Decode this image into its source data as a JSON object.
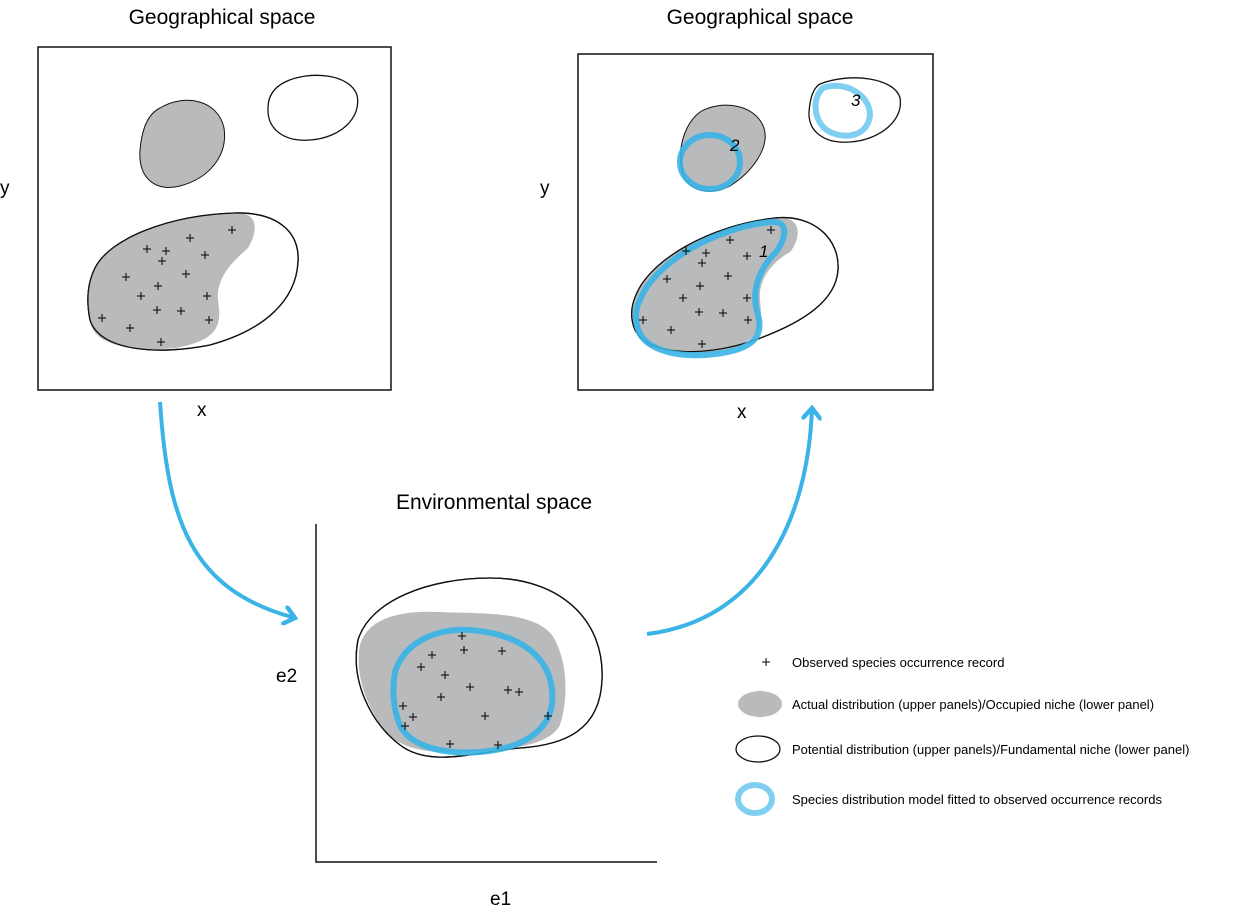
{
  "panels": {
    "geo_left": {
      "title": "Geographical space",
      "xlabel": "x",
      "ylabel": "y"
    },
    "geo_right": {
      "title": "Geographical space",
      "xlabel": "x",
      "ylabel": "y",
      "labels": [
        "1",
        "2",
        "3"
      ]
    },
    "env": {
      "title": "Environmental space",
      "xlabel": "e1",
      "ylabel": "e2"
    }
  },
  "legend": {
    "items": [
      {
        "icon": "plus-icon",
        "label": "Observed species occurrence record"
      },
      {
        "icon": "gray-blob-icon",
        "label": "Actual distribution (upper panels)/Occupied niche (lower panel)"
      },
      {
        "icon": "outline-blob-icon",
        "label": "Potential distribution (upper panels)/Fundamental niche (lower panel)"
      },
      {
        "icon": "blue-ring-icon",
        "label": "Species distribution model fitted to observed occurrence records"
      }
    ]
  },
  "colors": {
    "gray": "#b9babc",
    "blue": "#3ab4e6",
    "blue_light": "#7fd0f0",
    "stroke": "#111111"
  }
}
